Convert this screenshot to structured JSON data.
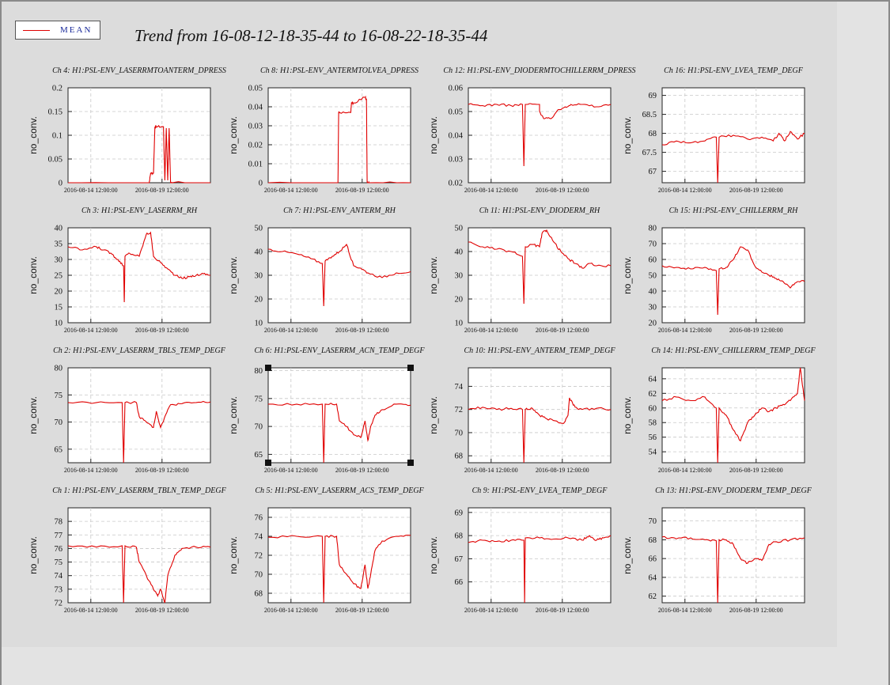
{
  "page_title": "Trend from 16-08-12-18-35-44 to 16-08-22-18-35-44",
  "legend": {
    "label": "MEAN",
    "line_color": "#e00000"
  },
  "colors": {
    "series": "#e00000",
    "panel_bg": "#dcdcdc",
    "plot_bg": "#ffffff",
    "grid": "#c8c8c8"
  },
  "chart_data": [
    {
      "type": "line",
      "title": "Ch 4: H1:PSL-ENV_LASERRMTOANTERM_DPRESS",
      "ylabel": "no_conv.",
      "ylim": [
        0,
        0.2
      ],
      "yticks": [
        "0",
        "0.05",
        "0.1",
        "0.15",
        "0.2"
      ],
      "xticks": [
        "2016-08-14 12:00:00",
        "2016-08-19 12:00:00"
      ],
      "grid": true,
      "series": [
        {
          "name": "MEAN",
          "x": [
            0,
            0.57,
            0.58,
            0.6,
            0.61,
            0.62,
            0.67,
            0.68,
            0.69,
            0.7,
            0.71,
            0.72,
            0.73,
            1
          ],
          "y": [
            0,
            0,
            0.02,
            0.02,
            0.118,
            0.118,
            0.118,
            0.005,
            0.115,
            0.005,
            0.115,
            0,
            0,
            0
          ]
        }
      ]
    },
    {
      "type": "line",
      "title": "Ch 8: H1:PSL-ENV_ANTERMTOLVEA_DPRESS",
      "ylabel": "no_conv.",
      "ylim": [
        0,
        0.05
      ],
      "yticks": [
        "0",
        "0.01",
        "0.02",
        "0.03",
        "0.04",
        "0.05"
      ],
      "xticks": [
        "2016-08-14 12:00:00",
        "2016-08-19 12:00:00"
      ],
      "grid": true,
      "series": [
        {
          "name": "MEAN",
          "x": [
            0,
            0.49,
            0.495,
            0.5,
            0.58,
            0.585,
            0.6,
            0.68,
            0.69,
            0.695,
            0.7,
            0.71,
            1
          ],
          "y": [
            0,
            0,
            0.037,
            0.037,
            0.037,
            0.042,
            0.042,
            0.045,
            0.044,
            0,
            0,
            0,
            0
          ]
        }
      ]
    },
    {
      "type": "line",
      "title": "Ch 12: H1:PSL-ENV_DIODERMTOCHILLERRM_DPRESS",
      "ylabel": "no_conv.",
      "ylim": [
        0.02,
        0.06
      ],
      "yticks": [
        "0.02",
        "0.03",
        "0.04",
        "0.05",
        "0.06"
      ],
      "xticks": [
        "2016-08-14 12:00:00",
        "2016-08-19 12:00:00"
      ],
      "grid": true,
      "series": [
        {
          "name": "MEAN",
          "x": [
            0,
            0.1,
            0.2,
            0.3,
            0.38,
            0.39,
            0.4,
            0.5,
            0.5,
            0.53,
            0.58,
            0.62,
            0.68,
            0.72,
            0.8,
            0.9,
            1
          ],
          "y": [
            0.053,
            0.0525,
            0.053,
            0.0525,
            0.053,
            0.027,
            0.053,
            0.053,
            0.05,
            0.047,
            0.047,
            0.05,
            0.052,
            0.053,
            0.053,
            0.052,
            0.053
          ]
        }
      ]
    },
    {
      "type": "line",
      "title": "Ch 16: H1:PSL-ENV_LVEA_TEMP_DEGF",
      "ylabel": "no_conv.",
      "ylim": [
        66.7,
        69.2
      ],
      "yticks": [
        "67",
        "67.5",
        "68",
        "68.5",
        "69"
      ],
      "xticks": [
        "2016-08-14 12:00:00",
        "2016-08-19 12:00:00"
      ],
      "grid": true,
      "series": [
        {
          "name": "MEAN",
          "x": [
            0,
            0.1,
            0.2,
            0.3,
            0.38,
            0.39,
            0.4,
            0.5,
            0.6,
            0.7,
            0.78,
            0.82,
            0.86,
            0.9,
            0.95,
            1
          ],
          "y": [
            67.7,
            67.8,
            67.75,
            67.8,
            67.9,
            66.7,
            67.9,
            67.95,
            67.85,
            67.9,
            67.8,
            68.0,
            67.8,
            68.05,
            67.85,
            68.0
          ]
        }
      ]
    },
    {
      "type": "line",
      "title": "Ch 3: H1:PSL-ENV_LASERRM_RH",
      "ylabel": "no_conv.",
      "ylim": [
        10,
        40
      ],
      "yticks": [
        "10",
        "15",
        "20",
        "25",
        "30",
        "35",
        "40"
      ],
      "xticks": [
        "2016-08-14 12:00:00",
        "2016-08-19 12:00:00"
      ],
      "grid": true,
      "series": [
        {
          "name": "MEAN",
          "x": [
            0,
            0.1,
            0.2,
            0.25,
            0.3,
            0.35,
            0.39,
            0.395,
            0.4,
            0.43,
            0.5,
            0.55,
            0.58,
            0.6,
            0.65,
            0.7,
            0.75,
            0.8,
            0.85,
            0.9,
            0.95,
            1
          ],
          "y": [
            34,
            33,
            34,
            33,
            32,
            30,
            28,
            16.5,
            31,
            32,
            31,
            38,
            38.5,
            31,
            29,
            27,
            25,
            24,
            24.5,
            25,
            25.5,
            25
          ]
        }
      ]
    },
    {
      "type": "line",
      "title": "Ch 7: H1:PSL-ENV_ANTERM_RH",
      "ylabel": "no_conv.",
      "ylim": [
        10,
        50
      ],
      "yticks": [
        "10",
        "20",
        "30",
        "40",
        "50"
      ],
      "xticks": [
        "2016-08-14 12:00:00",
        "2016-08-19 12:00:00"
      ],
      "grid": true,
      "series": [
        {
          "name": "MEAN",
          "x": [
            0,
            0.1,
            0.2,
            0.3,
            0.38,
            0.39,
            0.4,
            0.45,
            0.5,
            0.55,
            0.6,
            0.65,
            0.7,
            0.8,
            0.9,
            1
          ],
          "y": [
            41,
            40,
            39,
            37,
            35,
            17,
            36,
            38,
            40,
            43,
            34,
            33,
            31,
            29,
            31,
            31.5
          ]
        }
      ]
    },
    {
      "type": "line",
      "title": "Ch 11: H1:PSL-ENV_DIODERM_RH",
      "ylabel": "no_conv.",
      "ylim": [
        10,
        50
      ],
      "yticks": [
        "10",
        "20",
        "30",
        "40",
        "50"
      ],
      "xticks": [
        "2016-08-14 12:00:00",
        "2016-08-19 12:00:00"
      ],
      "grid": true,
      "series": [
        {
          "name": "MEAN",
          "x": [
            0,
            0.1,
            0.2,
            0.3,
            0.38,
            0.39,
            0.4,
            0.45,
            0.5,
            0.52,
            0.55,
            0.6,
            0.65,
            0.7,
            0.75,
            0.8,
            0.85,
            0.9,
            1
          ],
          "y": [
            44,
            42,
            41,
            40,
            38,
            18,
            42,
            43,
            42,
            48,
            49,
            44,
            40,
            37,
            35,
            33,
            35,
            34,
            34
          ]
        }
      ]
    },
    {
      "type": "line",
      "title": "Ch 15: H1:PSL-ENV_CHILLERRM_RH",
      "ylabel": "no_conv.",
      "ylim": [
        20,
        80
      ],
      "yticks": [
        "20",
        "30",
        "40",
        "50",
        "60",
        "70",
        "80"
      ],
      "xticks": [
        "2016-08-14 12:00:00",
        "2016-08-19 12:00:00"
      ],
      "grid": true,
      "series": [
        {
          "name": "MEAN",
          "x": [
            0,
            0.1,
            0.2,
            0.3,
            0.38,
            0.39,
            0.4,
            0.45,
            0.5,
            0.55,
            0.6,
            0.65,
            0.7,
            0.75,
            0.8,
            0.85,
            0.9,
            0.95,
            1
          ],
          "y": [
            56,
            55,
            54,
            55,
            53,
            25,
            54,
            55,
            60,
            68,
            66,
            56,
            52,
            50,
            48,
            46,
            42,
            46,
            46
          ]
        }
      ]
    },
    {
      "type": "line",
      "title": "Ch 2: H1:PSL-ENV_LASERRM_TBLS_TEMP_DEGF",
      "ylabel": "no_conv.",
      "ylim": [
        62.5,
        80
      ],
      "yticks": [
        "65",
        "70",
        "75",
        "80"
      ],
      "xticks": [
        "2016-08-14 12:00:00",
        "2016-08-19 12:00:00"
      ],
      "grid": true,
      "series": [
        {
          "name": "MEAN",
          "x": [
            0,
            0.2,
            0.38,
            0.39,
            0.4,
            0.48,
            0.5,
            0.55,
            0.6,
            0.62,
            0.65,
            0.68,
            0.72,
            0.8,
            0.9,
            1
          ],
          "y": [
            73.6,
            73.6,
            73.6,
            62.5,
            73.6,
            73.6,
            71,
            70,
            69,
            72,
            69,
            71,
            73.2,
            73.4,
            73.6,
            73.7
          ]
        }
      ]
    },
    {
      "type": "line",
      "title": "Ch 6: H1:PSL-ENV_LASERRM_ACN_TEMP_DEGF",
      "ylabel": "no_conv.",
      "ylim": [
        63.5,
        80.5
      ],
      "yticks": [
        "65",
        "70",
        "75",
        "80"
      ],
      "xticks": [
        "2016-08-14 12:00:00",
        "2016-08-19 12:00:00"
      ],
      "grid": true,
      "series": [
        {
          "name": "MEAN",
          "x": [
            0,
            0.2,
            0.38,
            0.39,
            0.4,
            0.48,
            0.5,
            0.55,
            0.6,
            0.65,
            0.68,
            0.7,
            0.72,
            0.75,
            0.8,
            0.9,
            1
          ],
          "y": [
            74,
            74,
            74,
            63.5,
            74,
            74,
            71,
            70,
            68.5,
            68,
            71,
            67.5,
            70,
            72,
            73,
            74,
            73.8
          ]
        }
      ]
    },
    {
      "type": "line",
      "title": "Ch 10: H1:PSL-ENV_ANTERM_TEMP_DEGF",
      "ylabel": "no_conv.",
      "ylim": [
        67.4,
        75.6
      ],
      "yticks": [
        "68",
        "70",
        "72",
        "74"
      ],
      "xticks": [
        "2016-08-14 12:00:00",
        "2016-08-19 12:00:00"
      ],
      "grid": true,
      "series": [
        {
          "name": "MEAN",
          "x": [
            0,
            0.1,
            0.2,
            0.3,
            0.38,
            0.39,
            0.4,
            0.45,
            0.5,
            0.55,
            0.62,
            0.67,
            0.7,
            0.71,
            0.75,
            0.8,
            0.9,
            1
          ],
          "y": [
            72,
            72.2,
            72,
            72.1,
            72,
            67.4,
            72,
            72.1,
            71.5,
            71.2,
            71,
            70.8,
            71.5,
            73,
            72.2,
            72,
            72.1,
            72
          ]
        }
      ]
    },
    {
      "type": "line",
      "title": "Ch 14: H1:PSL-ENV_CHILLERRM_TEMP_DEGF",
      "ylabel": "no_conv.",
      "ylim": [
        52.5,
        65.5
      ],
      "yticks": [
        "54",
        "56",
        "58",
        "60",
        "62",
        "64"
      ],
      "xticks": [
        "2016-08-14 12:00:00",
        "2016-08-19 12:00:00"
      ],
      "grid": true,
      "series": [
        {
          "name": "MEAN",
          "x": [
            0,
            0.1,
            0.2,
            0.3,
            0.38,
            0.39,
            0.4,
            0.45,
            0.5,
            0.55,
            0.6,
            0.65,
            0.7,
            0.75,
            0.8,
            0.85,
            0.9,
            0.95,
            0.97,
            1
          ],
          "y": [
            61,
            61.5,
            61,
            61.5,
            60,
            52.5,
            60,
            59,
            57,
            55.5,
            58,
            59,
            60,
            59.5,
            60,
            60.5,
            61,
            62,
            65.5,
            61
          ]
        }
      ]
    },
    {
      "type": "line",
      "title": "Ch 1: H1:PSL-ENV_LASERRM_TBLN_TEMP_DEGF",
      "ylabel": "no_conv.",
      "ylim": [
        72,
        79
      ],
      "yticks": [
        "72",
        "73",
        "74",
        "75",
        "76",
        "77",
        "78"
      ],
      "xticks": [
        "2016-08-14 12:00:00",
        "2016-08-19 12:00:00"
      ],
      "grid": true,
      "series": [
        {
          "name": "MEAN",
          "x": [
            0,
            0.2,
            0.38,
            0.39,
            0.4,
            0.48,
            0.5,
            0.55,
            0.6,
            0.63,
            0.65,
            0.68,
            0.7,
            0.75,
            0.8,
            0.9,
            1
          ],
          "y": [
            76.2,
            76.1,
            76.2,
            72,
            76.2,
            76.1,
            75,
            74,
            73,
            72.5,
            73,
            72,
            74,
            75.5,
            76,
            76.1,
            76.1
          ]
        }
      ]
    },
    {
      "type": "line",
      "title": "Ch 5: H1:PSL-ENV_LASERRM_ACS_TEMP_DEGF",
      "ylabel": "no_conv.",
      "ylim": [
        67,
        77
      ],
      "yticks": [
        "68",
        "70",
        "72",
        "74",
        "76"
      ],
      "xticks": [
        "2016-08-14 12:00:00",
        "2016-08-19 12:00:00"
      ],
      "grid": true,
      "series": [
        {
          "name": "MEAN",
          "x": [
            0,
            0.2,
            0.38,
            0.39,
            0.4,
            0.48,
            0.5,
            0.55,
            0.6,
            0.65,
            0.68,
            0.7,
            0.72,
            0.75,
            0.8,
            0.9,
            1
          ],
          "y": [
            73.9,
            74,
            74,
            67,
            74,
            74,
            71,
            70,
            69,
            68.5,
            71,
            68.5,
            70,
            72.5,
            73.5,
            74,
            74.1
          ]
        }
      ]
    },
    {
      "type": "line",
      "title": "Ch 9: H1:PSL-ENV_LVEA_TEMP_DEGF",
      "ylabel": "no_conv.",
      "ylim": [
        65.1,
        69.2
      ],
      "yticks": [
        "66",
        "67",
        "68",
        "69"
      ],
      "xticks": [
        "2016-08-14 12:00:00",
        "2016-08-19 12:00:00"
      ],
      "grid": true,
      "series": [
        {
          "name": "MEAN",
          "x": [
            0,
            0.1,
            0.2,
            0.3,
            0.39,
            0.395,
            0.4,
            0.5,
            0.6,
            0.7,
            0.8,
            0.85,
            0.9,
            0.95,
            1
          ],
          "y": [
            67.7,
            67.8,
            67.75,
            67.8,
            67.8,
            65.1,
            67.9,
            67.9,
            67.85,
            67.9,
            67.8,
            68,
            67.8,
            67.9,
            68
          ]
        }
      ]
    },
    {
      "type": "line",
      "title": "Ch 13: H1:PSL-ENV_DIODERM_TEMP_DEGF",
      "ylabel": "no_conv.",
      "ylim": [
        61.3,
        71.4
      ],
      "yticks": [
        "62",
        "64",
        "66",
        "68",
        "70"
      ],
      "xticks": [
        "2016-08-14 12:00:00",
        "2016-08-19 12:00:00"
      ],
      "grid": true,
      "series": [
        {
          "name": "MEAN",
          "x": [
            0,
            0.1,
            0.2,
            0.3,
            0.38,
            0.39,
            0.4,
            0.45,
            0.5,
            0.55,
            0.6,
            0.65,
            0.7,
            0.75,
            0.8,
            0.9,
            1
          ],
          "y": [
            68.3,
            68.1,
            68.2,
            68,
            67.9,
            61.3,
            68,
            68,
            67.5,
            66,
            65.5,
            66,
            65.8,
            67.5,
            67.8,
            68,
            68.2
          ]
        }
      ]
    }
  ]
}
